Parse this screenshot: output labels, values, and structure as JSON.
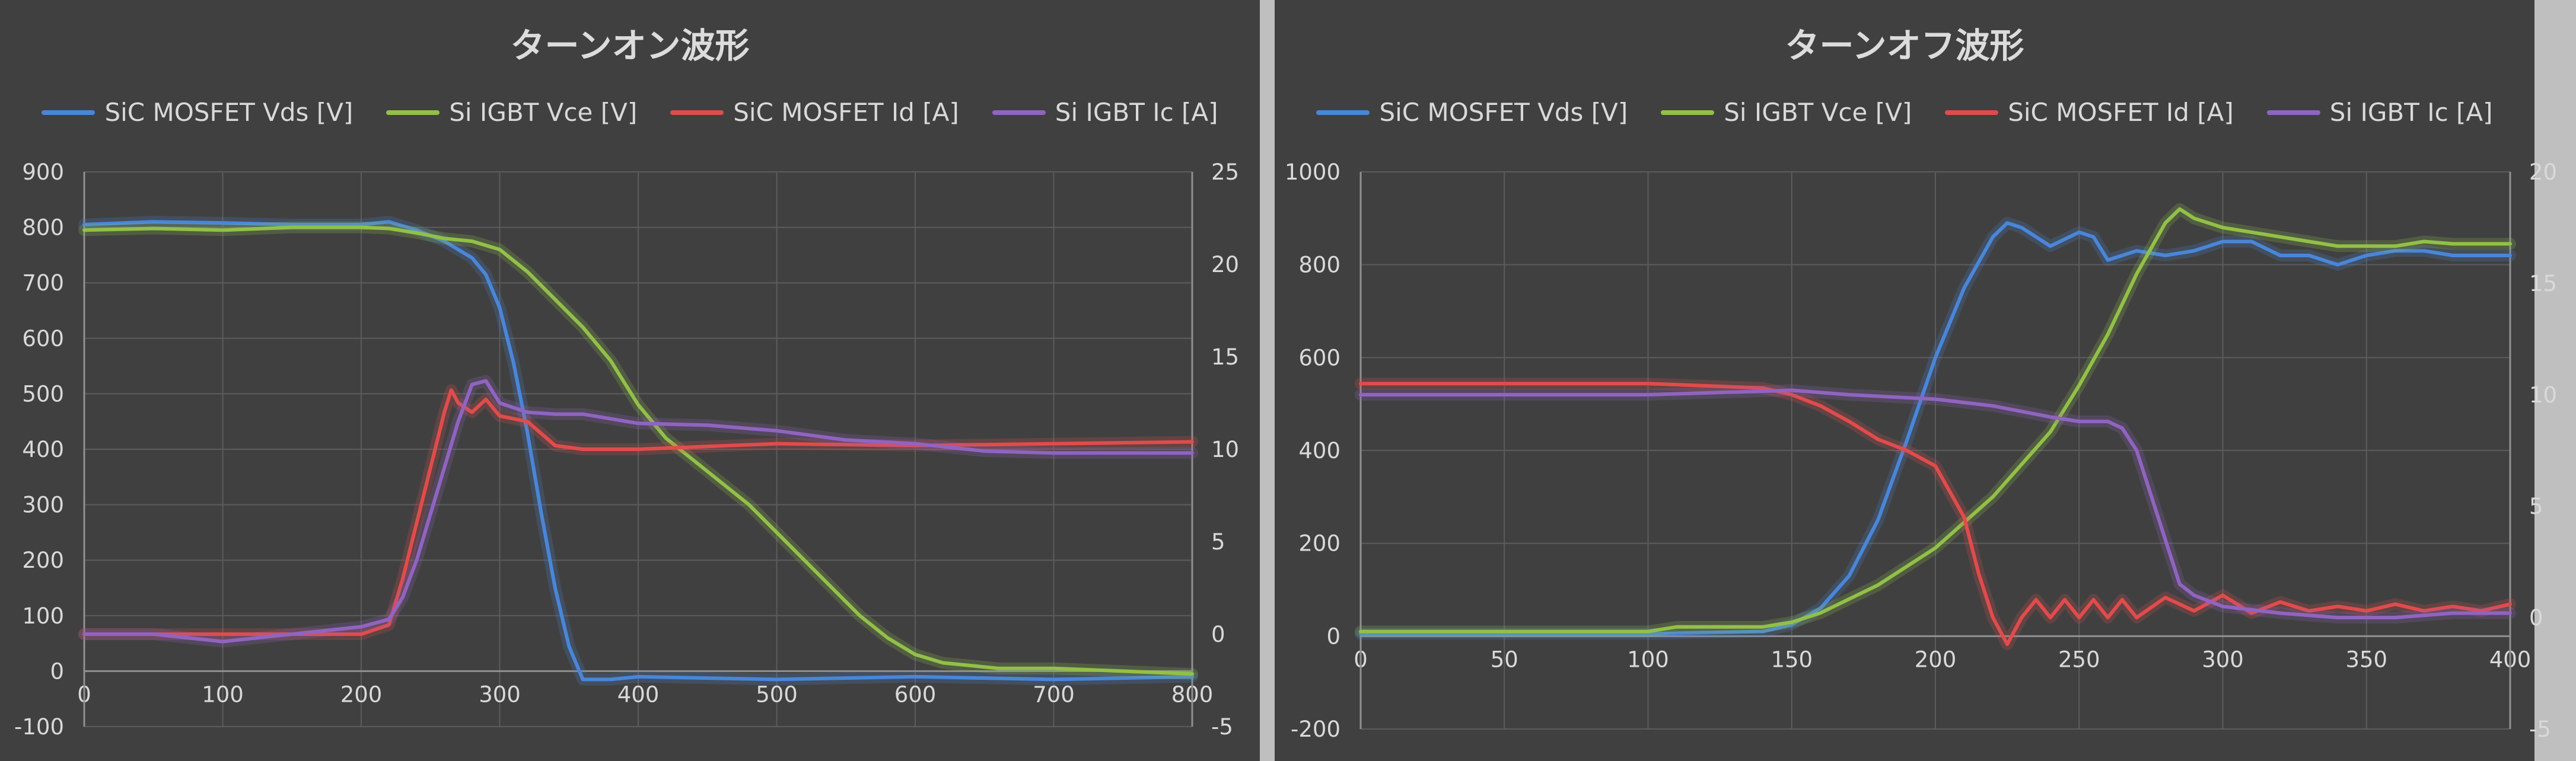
{
  "chart_data": [
    {
      "type": "line",
      "title": "ターンオン波形",
      "legend_position": "top",
      "grid": true,
      "xlim": [
        0,
        800
      ],
      "x_ticks": [
        0,
        100,
        200,
        300,
        400,
        500,
        600,
        700,
        800
      ],
      "ylim": [
        -100,
        900
      ],
      "y_ticks": [
        -100,
        0,
        100,
        200,
        300,
        400,
        500,
        600,
        700,
        800,
        900
      ],
      "y2lim": [
        -5,
        25
      ],
      "y2_ticks": [
        -5,
        0,
        5,
        10,
        15,
        20,
        25
      ],
      "series": [
        {
          "name": "SiC MOSFET Vds [V]",
          "color": "#4a86d8",
          "axis": "left",
          "x": [
            0,
            50,
            100,
            150,
            200,
            220,
            240,
            260,
            280,
            290,
            300,
            310,
            320,
            330,
            340,
            350,
            360,
            380,
            400,
            500,
            600,
            700,
            800
          ],
          "y": [
            805,
            810,
            808,
            805,
            805,
            810,
            795,
            775,
            745,
            715,
            655,
            555,
            430,
            285,
            150,
            45,
            -15,
            -15,
            -10,
            -15,
            -10,
            -15,
            -10
          ]
        },
        {
          "name": "Si IGBT Vce [V]",
          "color": "#92c048",
          "axis": "left",
          "x": [
            0,
            50,
            100,
            150,
            200,
            220,
            240,
            260,
            280,
            300,
            320,
            340,
            360,
            380,
            400,
            420,
            440,
            460,
            480,
            500,
            520,
            540,
            560,
            580,
            600,
            620,
            640,
            660,
            700,
            750,
            800
          ],
          "y": [
            795,
            798,
            795,
            800,
            800,
            798,
            790,
            780,
            775,
            760,
            720,
            670,
            620,
            560,
            480,
            420,
            380,
            340,
            300,
            250,
            200,
            150,
            100,
            60,
            30,
            15,
            10,
            5,
            5,
            0,
            -5
          ]
        },
        {
          "name": "SiC MOSFET Id [A]",
          "color": "#e04c4c",
          "axis": "right",
          "x": [
            0,
            100,
            200,
            220,
            230,
            240,
            250,
            260,
            265,
            270,
            280,
            290,
            300,
            320,
            340,
            360,
            400,
            500,
            600,
            700,
            800
          ],
          "y": [
            0,
            0,
            0,
            0.5,
            3,
            6,
            9,
            12,
            13.2,
            12.5,
            12,
            12.7,
            11.8,
            11.5,
            10.2,
            10,
            10,
            10.3,
            10.2,
            10.3,
            10.4
          ]
        },
        {
          "name": "Si IGBT Ic [A]",
          "color": "#9064c0",
          "axis": "right",
          "x": [
            0,
            50,
            100,
            150,
            200,
            220,
            230,
            240,
            250,
            260,
            270,
            280,
            290,
            300,
            320,
            340,
            360,
            400,
            450,
            500,
            550,
            600,
            650,
            700,
            750,
            800
          ],
          "y": [
            0,
            0,
            -0.4,
            0,
            0.4,
            0.8,
            2,
            4,
            6.5,
            9,
            11.5,
            13.5,
            13.7,
            12.5,
            12,
            11.9,
            11.9,
            11.4,
            11.3,
            11,
            10.5,
            10.3,
            9.9,
            9.8,
            9.8,
            9.8
          ]
        }
      ]
    },
    {
      "type": "line",
      "title": "ターンオフ波形",
      "legend_position": "top",
      "grid": true,
      "xlim": [
        0,
        400
      ],
      "x_ticks": [
        0,
        50,
        100,
        150,
        200,
        250,
        300,
        350,
        400
      ],
      "ylim": [
        -200,
        1000
      ],
      "y_ticks": [
        -200,
        0,
        200,
        400,
        600,
        800,
        1000
      ],
      "y2lim": [
        -5,
        20
      ],
      "y2_ticks": [
        -5,
        0,
        5,
        10,
        15,
        20
      ],
      "series": [
        {
          "name": "SiC MOSFET Vds [V]",
          "color": "#4a86d8",
          "axis": "left",
          "x": [
            0,
            50,
            100,
            140,
            150,
            160,
            170,
            180,
            190,
            200,
            210,
            220,
            225,
            230,
            240,
            250,
            255,
            260,
            270,
            280,
            290,
            300,
            310,
            320,
            330,
            340,
            350,
            360,
            370,
            380,
            390,
            400
          ],
          "y": [
            5,
            5,
            5,
            10,
            25,
            60,
            130,
            250,
            420,
            600,
            750,
            860,
            890,
            880,
            840,
            870,
            860,
            810,
            830,
            820,
            830,
            850,
            850,
            820,
            820,
            800,
            820,
            830,
            830,
            820,
            820,
            820
          ]
        },
        {
          "name": "Si IGBT Vce [V]",
          "color": "#92c048",
          "axis": "left",
          "x": [
            0,
            50,
            100,
            110,
            140,
            150,
            160,
            180,
            200,
            220,
            240,
            250,
            260,
            270,
            280,
            285,
            290,
            300,
            310,
            320,
            330,
            340,
            350,
            360,
            370,
            380,
            390,
            400
          ],
          "y": [
            10,
            10,
            10,
            20,
            20,
            30,
            50,
            110,
            190,
            300,
            440,
            540,
            650,
            780,
            890,
            920,
            900,
            880,
            870,
            860,
            850,
            840,
            840,
            840,
            850,
            845,
            845,
            845
          ]
        },
        {
          "name": "SiC MOSFET Id [A]",
          "color": "#e04c4c",
          "axis": "right",
          "x": [
            0,
            50,
            100,
            140,
            150,
            160,
            170,
            180,
            190,
            200,
            210,
            215,
            220,
            225,
            230,
            235,
            240,
            245,
            250,
            255,
            260,
            265,
            270,
            280,
            290,
            300,
            310,
            320,
            330,
            340,
            350,
            360,
            370,
            380,
            390,
            400
          ],
          "y": [
            10.5,
            10.5,
            10.5,
            10.3,
            10,
            9.5,
            8.8,
            8,
            7.5,
            6.8,
            4.5,
            2,
            0,
            -1.2,
            0,
            0.8,
            0,
            0.8,
            0,
            0.8,
            0,
            0.8,
            0,
            0.9,
            0.3,
            1,
            0.2,
            0.7,
            0.3,
            0.5,
            0.3,
            0.6,
            0.3,
            0.5,
            0.3,
            0.6
          ]
        },
        {
          "name": "Si IGBT Ic [A]",
          "color": "#9064c0",
          "axis": "right",
          "x": [
            0,
            50,
            100,
            150,
            170,
            200,
            220,
            240,
            250,
            260,
            265,
            270,
            275,
            280,
            285,
            290,
            300,
            320,
            340,
            360,
            380,
            400
          ],
          "y": [
            10,
            10,
            10,
            10.2,
            10,
            9.8,
            9.5,
            9,
            8.8,
            8.8,
            8.5,
            7.5,
            5.5,
            3.5,
            1.5,
            1,
            0.5,
            0.2,
            0,
            0,
            0.2,
            0.2
          ]
        }
      ]
    }
  ]
}
